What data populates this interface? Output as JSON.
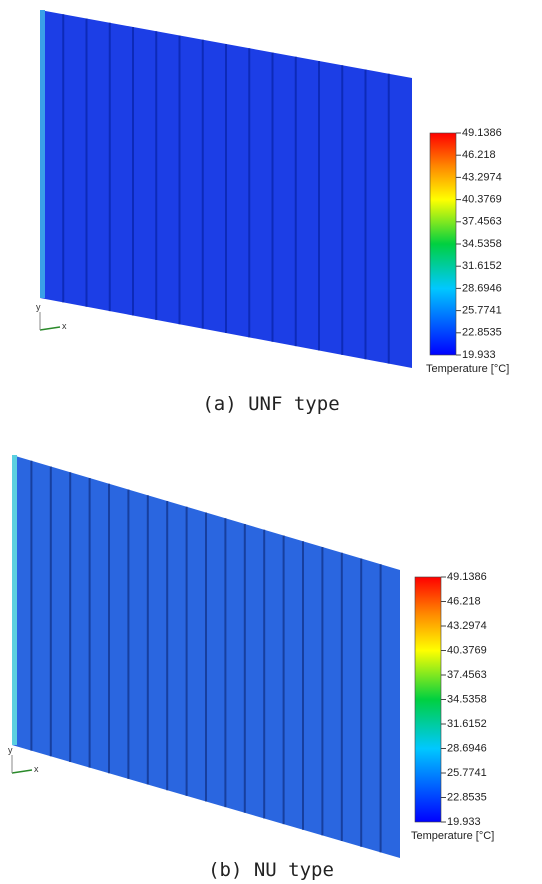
{
  "panels": [
    {
      "caption": "(a) UNF type",
      "axes": {
        "y": "y",
        "x": "x"
      },
      "colorbar": {
        "title": "Temperature [°C]",
        "labels": [
          "49.1386",
          "46.218",
          "43.2974",
          "40.3769",
          "37.4563",
          "34.5358",
          "31.6152",
          "28.6946",
          "25.7741",
          "22.8535",
          "19.933"
        ]
      }
    },
    {
      "caption": "(b) NU type",
      "axes": {
        "y": "y",
        "x": "x"
      },
      "colorbar": {
        "title": "Temperature [°C]",
        "labels": [
          "49.1386",
          "46.218",
          "43.2974",
          "40.3769",
          "37.4563",
          "34.5358",
          "31.6152",
          "28.6946",
          "25.7741",
          "22.8535",
          "19.933"
        ]
      }
    }
  ]
}
